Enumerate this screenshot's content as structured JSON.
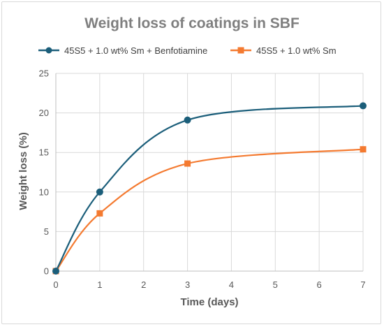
{
  "chart_data": {
    "type": "line",
    "title": "Weight loss of coatings in SBF",
    "xlabel": "Time (days)",
    "ylabel": "Weight loss (%)",
    "xlim": [
      0,
      7
    ],
    "ylim": [
      0,
      25
    ],
    "x_ticks": [
      0,
      1,
      2,
      3,
      4,
      5,
      6,
      7
    ],
    "y_ticks": [
      0,
      5,
      10,
      15,
      20,
      25
    ],
    "grid": "vertical and horizontal",
    "legend_position": "top",
    "smooth": true,
    "series": [
      {
        "name": "45S5 + 1.0 wt% Sm + Benfotiamine",
        "x": [
          0,
          1,
          3,
          7
        ],
        "y": [
          0,
          10,
          19.1,
          20.9
        ],
        "color": "#1b5e7a",
        "marker": "circle"
      },
      {
        "name": "45S5 + 1.0 wt% Sm",
        "x": [
          0,
          1,
          3,
          7
        ],
        "y": [
          0,
          7.3,
          13.6,
          15.4
        ],
        "color": "#f47a30",
        "marker": "square"
      }
    ]
  }
}
